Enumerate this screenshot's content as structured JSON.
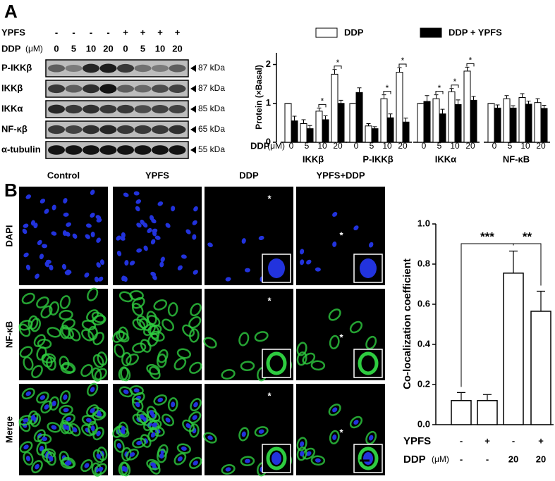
{
  "panels": [
    "A",
    "B"
  ],
  "blot": {
    "ypfs_label": "YPFS",
    "ddp_label": "DDP",
    "unit": "(μM)",
    "ypfs": [
      "-",
      "-",
      "-",
      "-",
      "+",
      "+",
      "+",
      "+"
    ],
    "doses": [
      "0",
      "5",
      "10",
      "20",
      "0",
      "5",
      "10",
      "20"
    ],
    "rows": [
      {
        "name": "P-IKKβ",
        "size": "87 kDa"
      },
      {
        "name": "IKKβ",
        "size": "87 kDa"
      },
      {
        "name": "IKKα",
        "size": "85 kDa"
      },
      {
        "name": "NF-κβ",
        "size": "65 kDa"
      },
      {
        "name": "α-tubulin",
        "size": "55 kDa"
      }
    ]
  },
  "images": {
    "columns": [
      "Control",
      "YPFS",
      "DDP",
      "YPFS+DDP"
    ],
    "rows": [
      "DAPI",
      "NF-κB",
      "Merge"
    ],
    "markers": [
      "*",
      "*",
      "*",
      "*",
      "*",
      "*"
    ]
  },
  "chart_data": [
    {
      "type": "bar",
      "y_label": "Protein (×Basal)",
      "x_label": "DDP",
      "x_unit": "(μM)",
      "groups": [
        "IKKβ",
        "P-IKKβ",
        "IKKα",
        "NF-κB"
      ],
      "categories": [
        "0",
        "5",
        "10",
        "20",
        "0",
        "5",
        "10",
        "20",
        "0",
        "5",
        "10",
        "20",
        "0",
        "5",
        "10",
        "20"
      ],
      "series": [
        {
          "name": "DDP",
          "color": "#ffffff",
          "values": [
            1.0,
            0.48,
            0.8,
            1.75,
            1.0,
            0.42,
            1.12,
            1.8,
            1.0,
            1.12,
            1.3,
            1.83,
            1.0,
            1.12,
            1.15,
            1.02
          ],
          "errors": [
            0,
            0.1,
            0.08,
            0.12,
            0,
            0.06,
            0.1,
            0.12,
            0,
            0.1,
            0.08,
            0.1,
            0,
            0.08,
            0.1,
            0.1
          ]
        },
        {
          "name": "DDP + YPFS",
          "color": "#000000",
          "values": [
            0.55,
            0.35,
            0.58,
            1.0,
            1.28,
            0.35,
            0.63,
            0.52,
            1.05,
            0.73,
            0.97,
            1.08,
            0.88,
            0.88,
            0.98,
            0.87
          ],
          "errors": [
            0.12,
            0.08,
            0.1,
            0.08,
            0.12,
            0.05,
            0.1,
            0.1,
            0.15,
            0.12,
            0.12,
            0.1,
            0.08,
            0.06,
            0.08,
            0.08
          ]
        }
      ],
      "ylim": [
        0,
        2.3
      ],
      "yticks": [
        0,
        1,
        2
      ],
      "significance": [
        "*",
        "*",
        "*",
        "*",
        "*",
        "*",
        "*"
      ]
    },
    {
      "type": "bar",
      "y_label": "Co-localization coefficient",
      "color": "#ffffff",
      "values": [
        0.12,
        0.12,
        0.755,
        0.565
      ],
      "errors": [
        0.04,
        0.03,
        0.11,
        0.1
      ],
      "ylim": [
        0,
        1.0
      ],
      "yticks": [
        {
          "value": 0,
          "label": "0.0"
        },
        0.2,
        0.4,
        0.6,
        0.8,
        {
          "value": 1.0,
          "label": "1.0"
        }
      ],
      "rows": [
        {
          "name": "YPFS",
          "values": [
            "-",
            "+",
            "-",
            "+"
          ]
        },
        {
          "name": "DDP",
          "unit": "(μM)",
          "values": [
            "-",
            "-",
            "20",
            "20"
          ]
        }
      ],
      "significance": [
        "***",
        "**"
      ]
    }
  ]
}
